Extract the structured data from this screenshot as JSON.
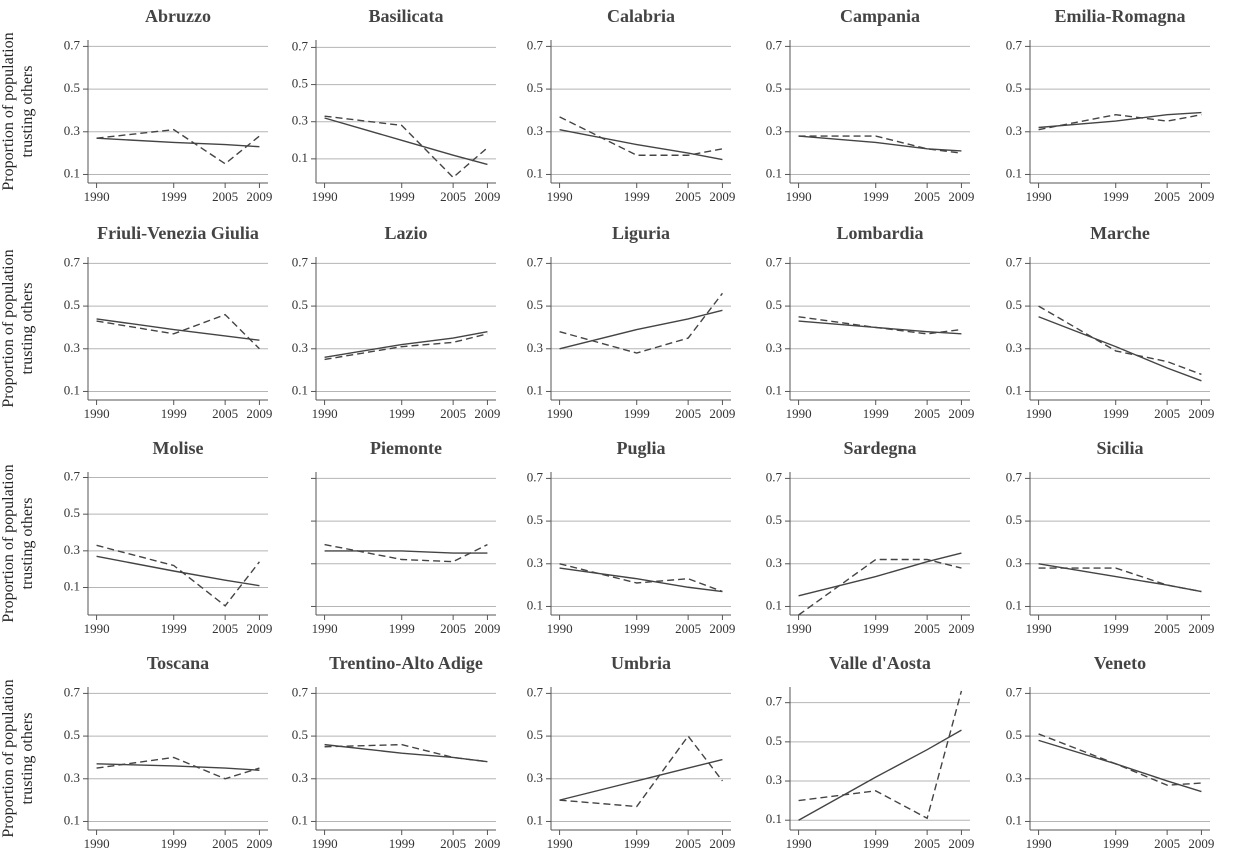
{
  "chart_data": [
    {
      "type": "line",
      "title": "Abruzzo",
      "ylabel": [
        "Proportion of population",
        "trusting others"
      ],
      "x": [
        1990,
        1999,
        2005,
        2009
      ],
      "xlim": [
        1989,
        2010
      ],
      "xticks": [
        1990,
        1999,
        2005,
        2009
      ],
      "ylim": [
        0.06,
        0.73
      ],
      "yticks": [
        0.1,
        0.3,
        0.5,
        0.7
      ],
      "grid": true,
      "series": [
        {
          "color": "#444444",
          "dashed": true,
          "values": [
            0.27,
            0.31,
            0.15,
            0.28
          ]
        },
        {
          "color": "#444444",
          "dashed": false,
          "values": [
            0.27,
            0.25,
            0.24,
            0.23
          ]
        }
      ]
    },
    {
      "type": "line",
      "title": "Basilicata",
      "x": [
        1990,
        1999,
        2005,
        2009
      ],
      "xlim": [
        1989,
        2010
      ],
      "xticks": [
        1990,
        1999,
        2005,
        2009
      ],
      "ylim": [
        -0.03,
        0.74
      ],
      "yticks": [
        0.1,
        0.3,
        0.5,
        0.7
      ],
      "grid": true,
      "series": [
        {
          "color": "#444444",
          "dashed": true,
          "values": [
            0.33,
            0.28,
            0.0,
            0.16
          ]
        },
        {
          "color": "#444444",
          "dashed": false,
          "values": [
            0.32,
            0.2,
            0.12,
            0.07
          ]
        }
      ]
    },
    {
      "type": "line",
      "title": "Calabria",
      "x": [
        1990,
        1999,
        2005,
        2009
      ],
      "xlim": [
        1989,
        2010
      ],
      "xticks": [
        1990,
        1999,
        2005,
        2009
      ],
      "ylim": [
        0.06,
        0.73
      ],
      "yticks": [
        0.1,
        0.3,
        0.5,
        0.7
      ],
      "grid": true,
      "series": [
        {
          "color": "#444444",
          "dashed": true,
          "values": [
            0.37,
            0.19,
            0.19,
            0.22
          ]
        },
        {
          "color": "#444444",
          "dashed": false,
          "values": [
            0.31,
            0.24,
            0.2,
            0.17
          ]
        }
      ]
    },
    {
      "type": "line",
      "title": "Campania",
      "x": [
        1990,
        1999,
        2005,
        2009
      ],
      "xlim": [
        1989,
        2010
      ],
      "xticks": [
        1990,
        1999,
        2005,
        2009
      ],
      "ylim": [
        0.06,
        0.73
      ],
      "yticks": [
        0.1,
        0.3,
        0.5,
        0.7
      ],
      "grid": true,
      "series": [
        {
          "color": "#444444",
          "dashed": true,
          "values": [
            0.28,
            0.28,
            0.22,
            0.2
          ]
        },
        {
          "color": "#444444",
          "dashed": false,
          "values": [
            0.28,
            0.25,
            0.22,
            0.21
          ]
        }
      ]
    },
    {
      "type": "line",
      "title": "Emilia-Romagna",
      "x": [
        1990,
        1999,
        2005,
        2009
      ],
      "xlim": [
        1989,
        2010
      ],
      "xticks": [
        1990,
        1999,
        2005,
        2009
      ],
      "ylim": [
        0.06,
        0.73
      ],
      "yticks": [
        0.1,
        0.3,
        0.5,
        0.7
      ],
      "grid": true,
      "series": [
        {
          "color": "#444444",
          "dashed": true,
          "values": [
            0.31,
            0.38,
            0.35,
            0.38
          ]
        },
        {
          "color": "#444444",
          "dashed": false,
          "values": [
            0.32,
            0.35,
            0.38,
            0.39
          ]
        }
      ]
    },
    {
      "type": "line",
      "title": "Friuli-Venezia Giulia",
      "ylabel": [
        "Proportion of population",
        "trusting others"
      ],
      "x": [
        1990,
        1999,
        2005,
        2009
      ],
      "xlim": [
        1989,
        2010
      ],
      "xticks": [
        1990,
        1999,
        2005,
        2009
      ],
      "ylim": [
        0.06,
        0.73
      ],
      "yticks": [
        0.1,
        0.3,
        0.5,
        0.7
      ],
      "grid": true,
      "series": [
        {
          "color": "#444444",
          "dashed": true,
          "values": [
            0.43,
            0.37,
            0.46,
            0.3
          ]
        },
        {
          "color": "#444444",
          "dashed": false,
          "values": [
            0.44,
            0.39,
            0.36,
            0.34
          ]
        }
      ]
    },
    {
      "type": "line",
      "title": "Lazio",
      "x": [
        1990,
        1999,
        2005,
        2009
      ],
      "xlim": [
        1989,
        2010
      ],
      "xticks": [
        1990,
        1999,
        2005,
        2009
      ],
      "ylim": [
        0.06,
        0.73
      ],
      "yticks": [
        0.1,
        0.3,
        0.5,
        0.7
      ],
      "grid": true,
      "series": [
        {
          "color": "#444444",
          "dashed": true,
          "values": [
            0.25,
            0.31,
            0.33,
            0.37
          ]
        },
        {
          "color": "#444444",
          "dashed": false,
          "values": [
            0.26,
            0.32,
            0.35,
            0.38
          ]
        }
      ]
    },
    {
      "type": "line",
      "title": "Liguria",
      "x": [
        1990,
        1999,
        2005,
        2009
      ],
      "xlim": [
        1989,
        2010
      ],
      "xticks": [
        1990,
        1999,
        2005,
        2009
      ],
      "ylim": [
        0.06,
        0.73
      ],
      "yticks": [
        0.1,
        0.3,
        0.5,
        0.7
      ],
      "grid": true,
      "series": [
        {
          "color": "#444444",
          "dashed": true,
          "values": [
            0.38,
            0.28,
            0.35,
            0.56
          ]
        },
        {
          "color": "#444444",
          "dashed": false,
          "values": [
            0.3,
            0.39,
            0.44,
            0.48
          ]
        }
      ]
    },
    {
      "type": "line",
      "title": "Lombardia",
      "x": [
        1990,
        1999,
        2005,
        2009
      ],
      "xlim": [
        1989,
        2010
      ],
      "xticks": [
        1990,
        1999,
        2005,
        2009
      ],
      "ylim": [
        0.06,
        0.73
      ],
      "yticks": [
        0.1,
        0.3,
        0.5,
        0.7
      ],
      "grid": true,
      "series": [
        {
          "color": "#444444",
          "dashed": true,
          "values": [
            0.45,
            0.4,
            0.37,
            0.39
          ]
        },
        {
          "color": "#444444",
          "dashed": false,
          "values": [
            0.43,
            0.4,
            0.38,
            0.37
          ]
        }
      ]
    },
    {
      "type": "line",
      "title": "Marche",
      "x": [
        1990,
        1999,
        2005,
        2009
      ],
      "xlim": [
        1989,
        2010
      ],
      "xticks": [
        1990,
        1999,
        2005,
        2009
      ],
      "ylim": [
        0.06,
        0.73
      ],
      "yticks": [
        0.1,
        0.3,
        0.5,
        0.7
      ],
      "grid": true,
      "series": [
        {
          "color": "#444444",
          "dashed": true,
          "values": [
            0.5,
            0.29,
            0.24,
            0.18
          ]
        },
        {
          "color": "#444444",
          "dashed": false,
          "values": [
            0.45,
            0.31,
            0.21,
            0.15
          ]
        }
      ]
    },
    {
      "type": "line",
      "title": "Molise",
      "ylabel": [
        "Proportion of population",
        "trusting others"
      ],
      "x": [
        1990,
        1999,
        2005,
        2009
      ],
      "xlim": [
        1989,
        2010
      ],
      "xticks": [
        1990,
        1999,
        2005,
        2009
      ],
      "ylim": [
        -0.05,
        0.73
      ],
      "yticks": [
        0.1,
        0.3,
        0.5,
        0.7
      ],
      "grid": true,
      "series": [
        {
          "color": "#444444",
          "dashed": true,
          "values": [
            0.33,
            0.22,
            0.0,
            0.24
          ]
        },
        {
          "color": "#444444",
          "dashed": false,
          "values": [
            0.27,
            0.19,
            0.14,
            0.11
          ]
        }
      ]
    },
    {
      "type": "line",
      "title": "Piemonte",
      "x": [
        1990,
        1999,
        2005,
        2009
      ],
      "xlim": [
        1989,
        2010
      ],
      "xticks": [
        1990,
        1999,
        2005,
        2009
      ],
      "ylim": [
        0.06,
        0.73
      ],
      "yticks": [
        0.1,
        0.3,
        0.5,
        0.7
      ],
      "ytick_labels": false,
      "grid": true,
      "series": [
        {
          "color": "#444444",
          "dashed": true,
          "values": [
            0.39,
            0.32,
            0.31,
            0.39
          ]
        },
        {
          "color": "#444444",
          "dashed": false,
          "values": [
            0.36,
            0.36,
            0.35,
            0.35
          ]
        }
      ]
    },
    {
      "type": "line",
      "title": "Puglia",
      "x": [
        1990,
        1999,
        2005,
        2009
      ],
      "xlim": [
        1989,
        2010
      ],
      "xticks": [
        1990,
        1999,
        2005,
        2009
      ],
      "ylim": [
        0.06,
        0.73
      ],
      "yticks": [
        0.1,
        0.3,
        0.5,
        0.7
      ],
      "grid": true,
      "series": [
        {
          "color": "#444444",
          "dashed": true,
          "values": [
            0.3,
            0.21,
            0.23,
            0.17
          ]
        },
        {
          "color": "#444444",
          "dashed": false,
          "values": [
            0.28,
            0.23,
            0.19,
            0.17
          ]
        }
      ]
    },
    {
      "type": "line",
      "title": "Sardegna",
      "x": [
        1990,
        1999,
        2005,
        2009
      ],
      "xlim": [
        1989,
        2010
      ],
      "xticks": [
        1990,
        1999,
        2005,
        2009
      ],
      "ylim": [
        0.06,
        0.73
      ],
      "yticks": [
        0.1,
        0.3,
        0.5,
        0.7
      ],
      "grid": true,
      "series": [
        {
          "color": "#444444",
          "dashed": true,
          "values": [
            0.06,
            0.32,
            0.32,
            0.28
          ]
        },
        {
          "color": "#444444",
          "dashed": false,
          "values": [
            0.15,
            0.24,
            0.31,
            0.35
          ]
        }
      ]
    },
    {
      "type": "line",
      "title": "Sicilia",
      "x": [
        1990,
        1999,
        2005,
        2009
      ],
      "xlim": [
        1989,
        2010
      ],
      "xticks": [
        1990,
        1999,
        2005,
        2009
      ],
      "ylim": [
        0.06,
        0.73
      ],
      "yticks": [
        0.1,
        0.3,
        0.5,
        0.7
      ],
      "grid": true,
      "series": [
        {
          "color": "#444444",
          "dashed": true,
          "values": [
            0.28,
            0.28,
            0.2,
            0.17
          ]
        },
        {
          "color": "#444444",
          "dashed": false,
          "values": [
            0.3,
            0.24,
            0.2,
            0.17
          ]
        }
      ]
    },
    {
      "type": "line",
      "title": "Toscana",
      "ylabel": [
        "Proportion of population",
        "trusting others"
      ],
      "x": [
        1990,
        1999,
        2005,
        2009
      ],
      "xlim": [
        1989,
        2010
      ],
      "xticks": [
        1990,
        1999,
        2005,
        2009
      ],
      "ylim": [
        0.06,
        0.73
      ],
      "yticks": [
        0.1,
        0.3,
        0.5,
        0.7
      ],
      "grid": true,
      "series": [
        {
          "color": "#444444",
          "dashed": true,
          "values": [
            0.35,
            0.4,
            0.3,
            0.35
          ]
        },
        {
          "color": "#444444",
          "dashed": false,
          "values": [
            0.37,
            0.36,
            0.35,
            0.34
          ]
        }
      ]
    },
    {
      "type": "line",
      "title": "Trentino-Alto Adige",
      "x": [
        1990,
        1999,
        2005,
        2009
      ],
      "xlim": [
        1989,
        2010
      ],
      "xticks": [
        1990,
        1999,
        2005,
        2009
      ],
      "ylim": [
        0.06,
        0.73
      ],
      "yticks": [
        0.1,
        0.3,
        0.5,
        0.7
      ],
      "grid": true,
      "series": [
        {
          "color": "#444444",
          "dashed": true,
          "values": [
            0.45,
            0.46,
            0.4,
            0.38
          ]
        },
        {
          "color": "#444444",
          "dashed": false,
          "values": [
            0.46,
            0.42,
            0.4,
            0.38
          ]
        }
      ]
    },
    {
      "type": "line",
      "title": "Umbria",
      "x": [
        1990,
        1999,
        2005,
        2009
      ],
      "xlim": [
        1989,
        2010
      ],
      "xticks": [
        1990,
        1999,
        2005,
        2009
      ],
      "ylim": [
        0.06,
        0.73
      ],
      "yticks": [
        0.1,
        0.3,
        0.5,
        0.7
      ],
      "grid": true,
      "series": [
        {
          "color": "#444444",
          "dashed": true,
          "values": [
            0.2,
            0.17,
            0.5,
            0.29
          ]
        },
        {
          "color": "#444444",
          "dashed": false,
          "values": [
            0.2,
            0.29,
            0.35,
            0.39
          ]
        }
      ]
    },
    {
      "type": "line",
      "title": "Valle d'Aosta",
      "x": [
        1990,
        1999,
        2005,
        2009
      ],
      "xlim": [
        1989,
        2010
      ],
      "xticks": [
        1990,
        1999,
        2005,
        2009
      ],
      "ylim": [
        0.05,
        0.78
      ],
      "yticks": [
        0.1,
        0.3,
        0.5,
        0.7
      ],
      "grid": true,
      "series": [
        {
          "color": "#444444",
          "dashed": true,
          "values": [
            0.2,
            0.25,
            0.11,
            0.76
          ]
        },
        {
          "color": "#444444",
          "dashed": false,
          "values": [
            0.1,
            0.32,
            0.46,
            0.56
          ]
        }
      ]
    },
    {
      "type": "line",
      "title": "Veneto",
      "x": [
        1990,
        1999,
        2005,
        2009
      ],
      "xlim": [
        1989,
        2010
      ],
      "xticks": [
        1990,
        1999,
        2005,
        2009
      ],
      "ylim": [
        0.06,
        0.73
      ],
      "yticks": [
        0.1,
        0.3,
        0.5,
        0.7
      ],
      "grid": true,
      "series": [
        {
          "color": "#444444",
          "dashed": true,
          "values": [
            0.51,
            0.37,
            0.27,
            0.28
          ]
        },
        {
          "color": "#444444",
          "dashed": false,
          "values": [
            0.48,
            0.37,
            0.29,
            0.24
          ]
        }
      ]
    }
  ]
}
